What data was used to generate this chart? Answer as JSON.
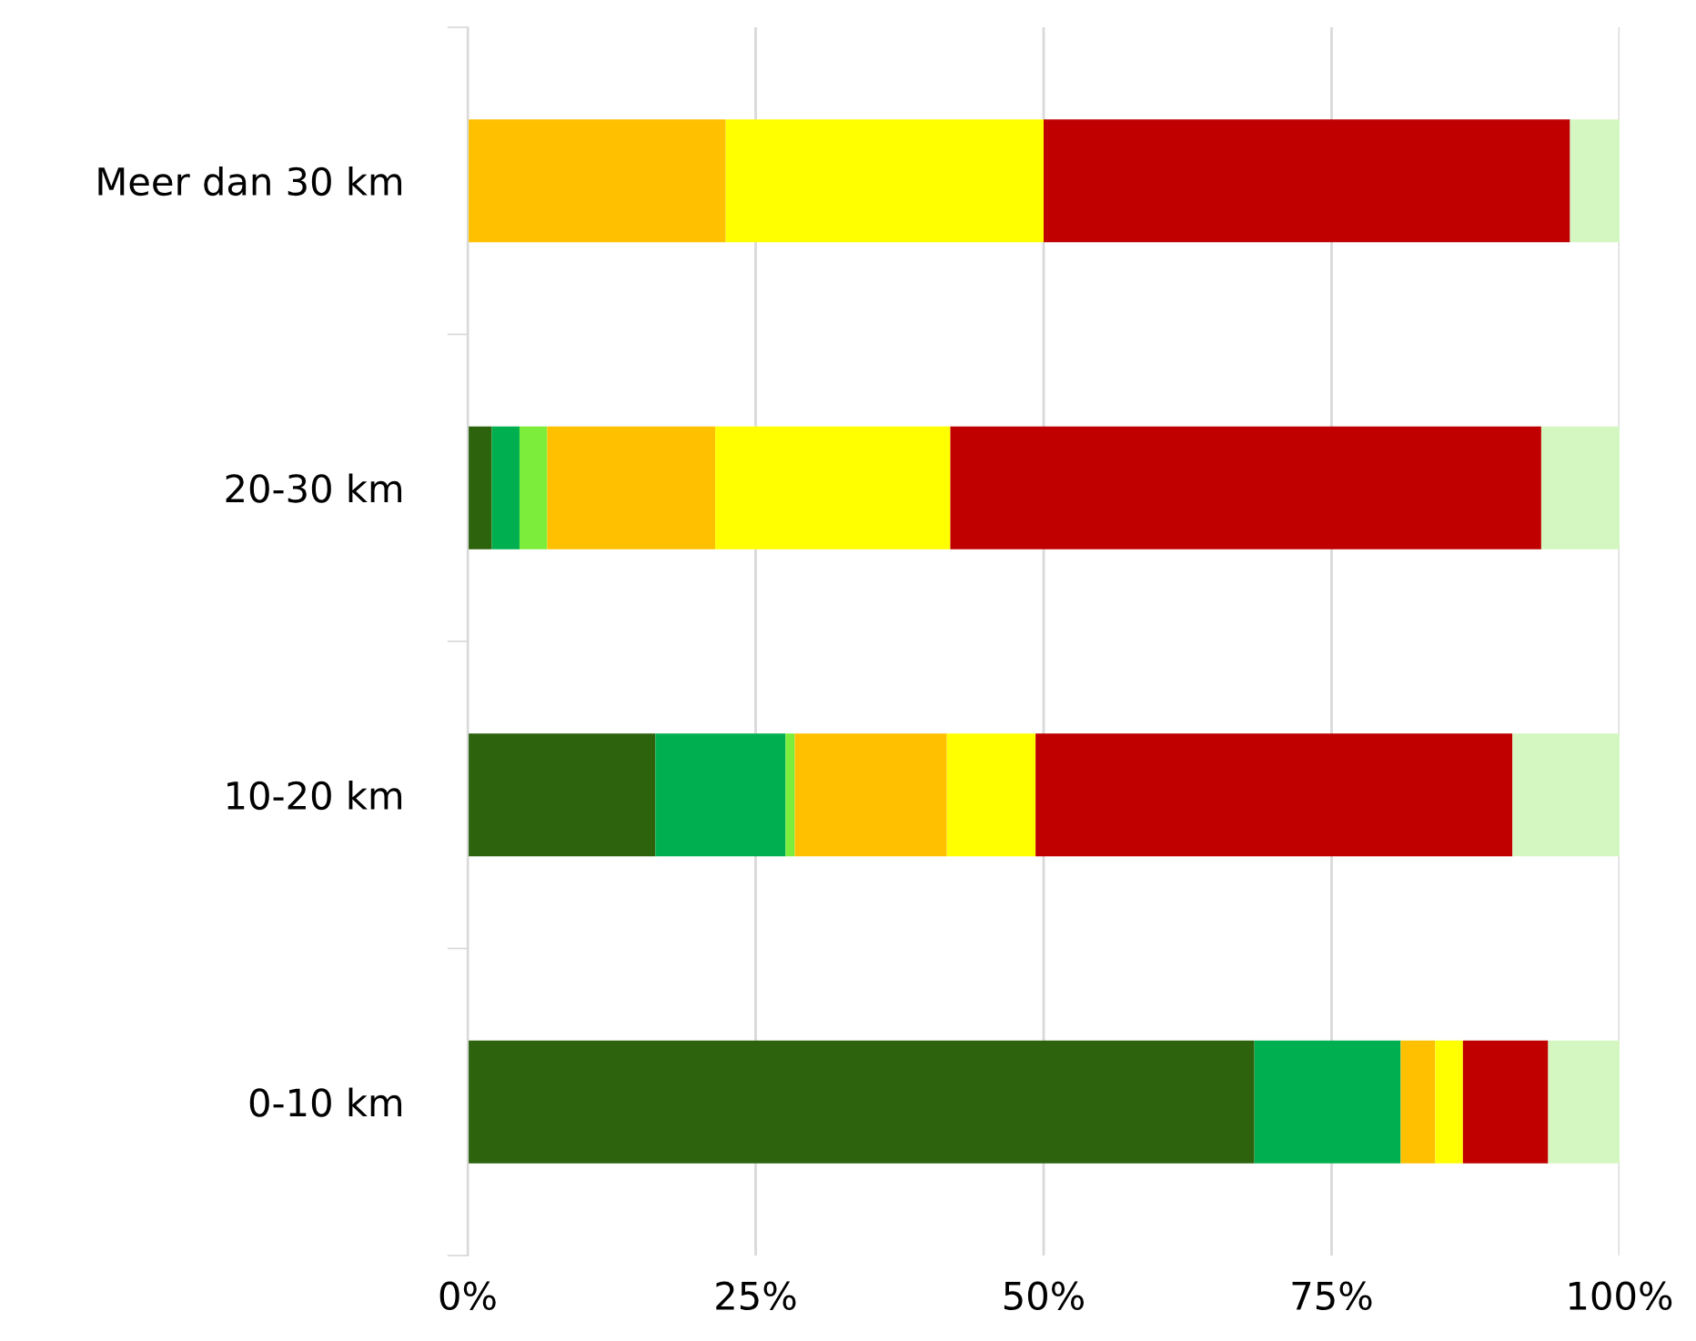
{
  "chart_data": {
    "type": "bar",
    "orientation": "horizontal",
    "stacked": true,
    "categories": [
      "Meer dan 30 km",
      "20-30 km",
      "10-20 km",
      "0-10 km"
    ],
    "series": [
      {
        "color": "#2c630c",
        "values": [
          0,
          2.1,
          16.3,
          68.3
        ]
      },
      {
        "color": "#00b050",
        "values": [
          0,
          2.4,
          11.3,
          12.7
        ]
      },
      {
        "color": "#7ced3a",
        "values": [
          0,
          2.4,
          0.8,
          0
        ]
      },
      {
        "color": "#ffc000",
        "values": [
          22.4,
          14.6,
          13.2,
          3.0
        ]
      },
      {
        "color": "#ffff00",
        "values": [
          27.6,
          20.4,
          7.7,
          2.4
        ]
      },
      {
        "color": "#c00000",
        "values": [
          45.7,
          51.3,
          41.4,
          7.4
        ]
      },
      {
        "color": "#d4f7c1",
        "values": [
          4.3,
          6.8,
          9.3,
          6.2
        ]
      }
    ],
    "xlim": [
      0,
      100
    ],
    "xticks": [
      {
        "value": 0,
        "label": "0%"
      },
      {
        "value": 25,
        "label": "25%"
      },
      {
        "value": 50,
        "label": "50%"
      },
      {
        "value": 75,
        "label": "75%"
      },
      {
        "value": 100,
        "label": "100%"
      }
    ],
    "grid": "x"
  }
}
